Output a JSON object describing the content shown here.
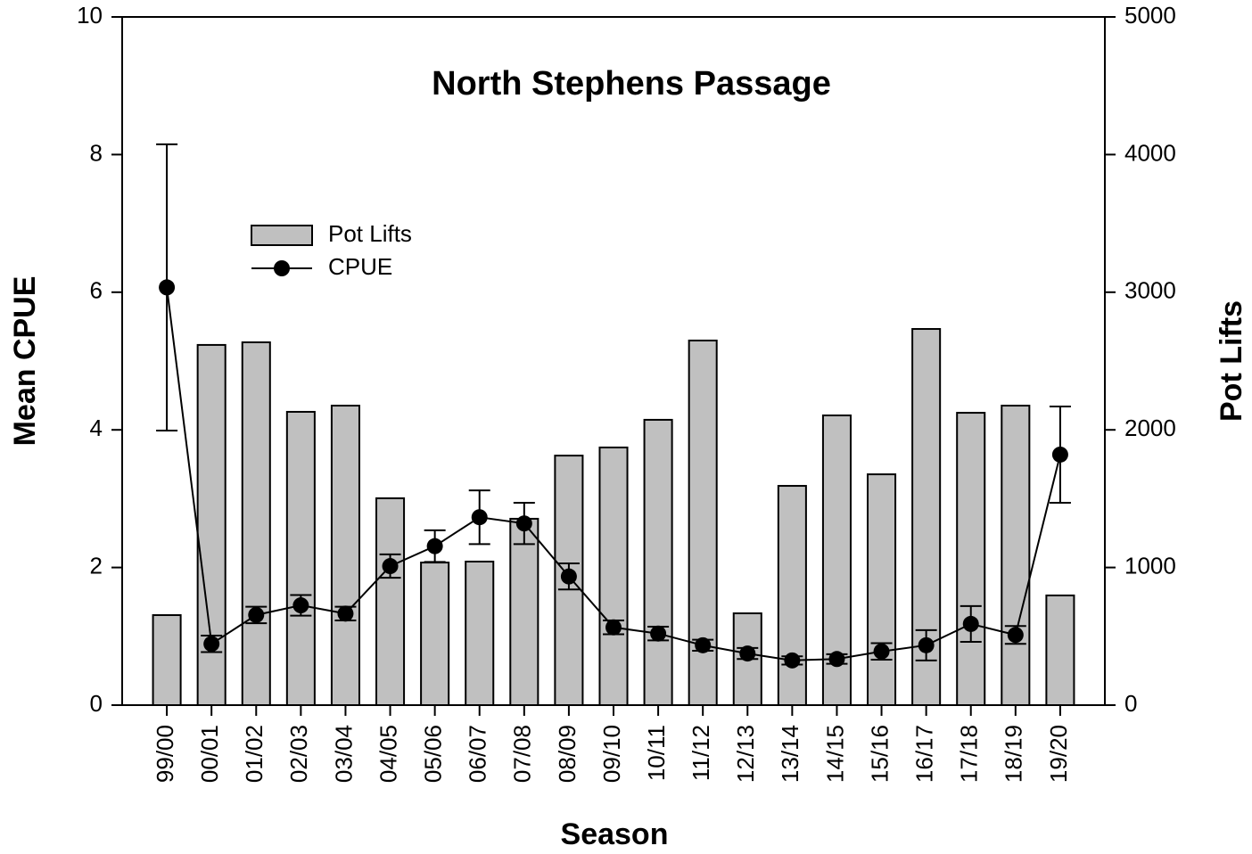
{
  "chart_data": {
    "type": "bar",
    "title": "North Stephens Passage",
    "xlabel": "Season",
    "ylabel": "Mean CPUE",
    "y2label": "Pot Lifts",
    "categories": [
      "99/00",
      "00/01",
      "01/02",
      "02/03",
      "03/04",
      "04/05",
      "05/06",
      "06/07",
      "07/08",
      "08/09",
      "09/10",
      "10/11",
      "11/12",
      "12/13",
      "13/14",
      "14/15",
      "15/16",
      "16/17",
      "17/18",
      "18/19",
      "19/20"
    ],
    "series": [
      {
        "name": "Pot Lifts",
        "type": "bar",
        "axis": "y2",
        "color": "#c0c0c0",
        "values": [
          654,
          2617,
          2636,
          2131,
          2176,
          1503,
          1036,
          1043,
          1354,
          1813,
          1872,
          2073,
          2649,
          667,
          1593,
          2105,
          1677,
          2733,
          2124,
          2176,
          797
        ]
      },
      {
        "name": "CPUE",
        "type": "line",
        "axis": "y",
        "color": "#000000",
        "values": [
          6.07,
          0.89,
          1.31,
          1.45,
          1.33,
          2.02,
          2.31,
          2.73,
          2.64,
          1.87,
          1.13,
          1.04,
          0.87,
          0.75,
          0.65,
          0.67,
          0.78,
          0.87,
          1.18,
          1.02,
          3.64
        ],
        "errors": [
          2.08,
          0.12,
          0.12,
          0.15,
          0.1,
          0.17,
          0.23,
          0.39,
          0.3,
          0.19,
          0.1,
          0.1,
          0.08,
          0.08,
          0.06,
          0.07,
          0.12,
          0.22,
          0.26,
          0.13,
          0.7
        ]
      }
    ],
    "ylim": [
      0,
      10
    ],
    "yticks": [
      0,
      2,
      4,
      6,
      8,
      10
    ],
    "y2lim": [
      0,
      5000
    ],
    "y2ticks": [
      0,
      1000,
      2000,
      3000,
      4000,
      5000
    ],
    "legend": "upper left"
  }
}
